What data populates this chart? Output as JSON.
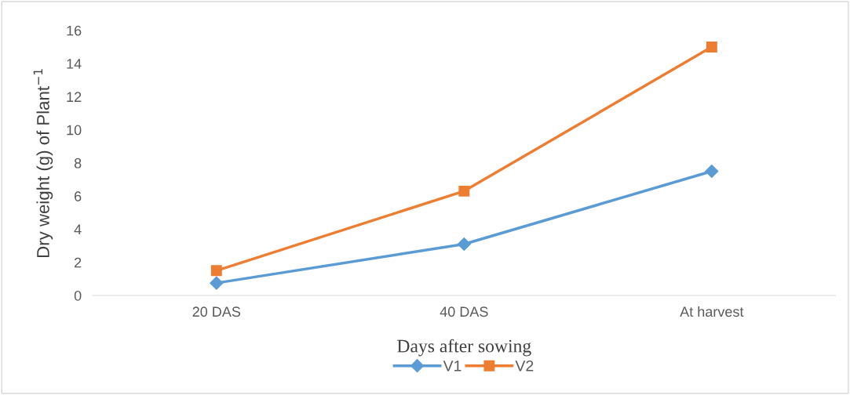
{
  "chart_data": {
    "type": "line",
    "xlabel": "Days after sowing",
    "ylabel": "Dry weight (g) of Plant$^{−1}$",
    "categories": [
      "20 DAS",
      "40 DAS",
      "At harvest"
    ],
    "series": [
      {
        "name": "V1",
        "color": "#5b9bd5",
        "marker": "diamond",
        "values": [
          0.75,
          3.1,
          7.5
        ]
      },
      {
        "name": "V2",
        "color": "#ed7d31",
        "marker": "square",
        "values": [
          1.5,
          6.3,
          15.0
        ]
      }
    ],
    "ylim": [
      0,
      16
    ],
    "yticks": [
      0,
      2,
      4,
      6,
      8,
      10,
      12,
      14,
      16
    ],
    "grid": false,
    "legend": "bottom",
    "line_style": "solid"
  }
}
